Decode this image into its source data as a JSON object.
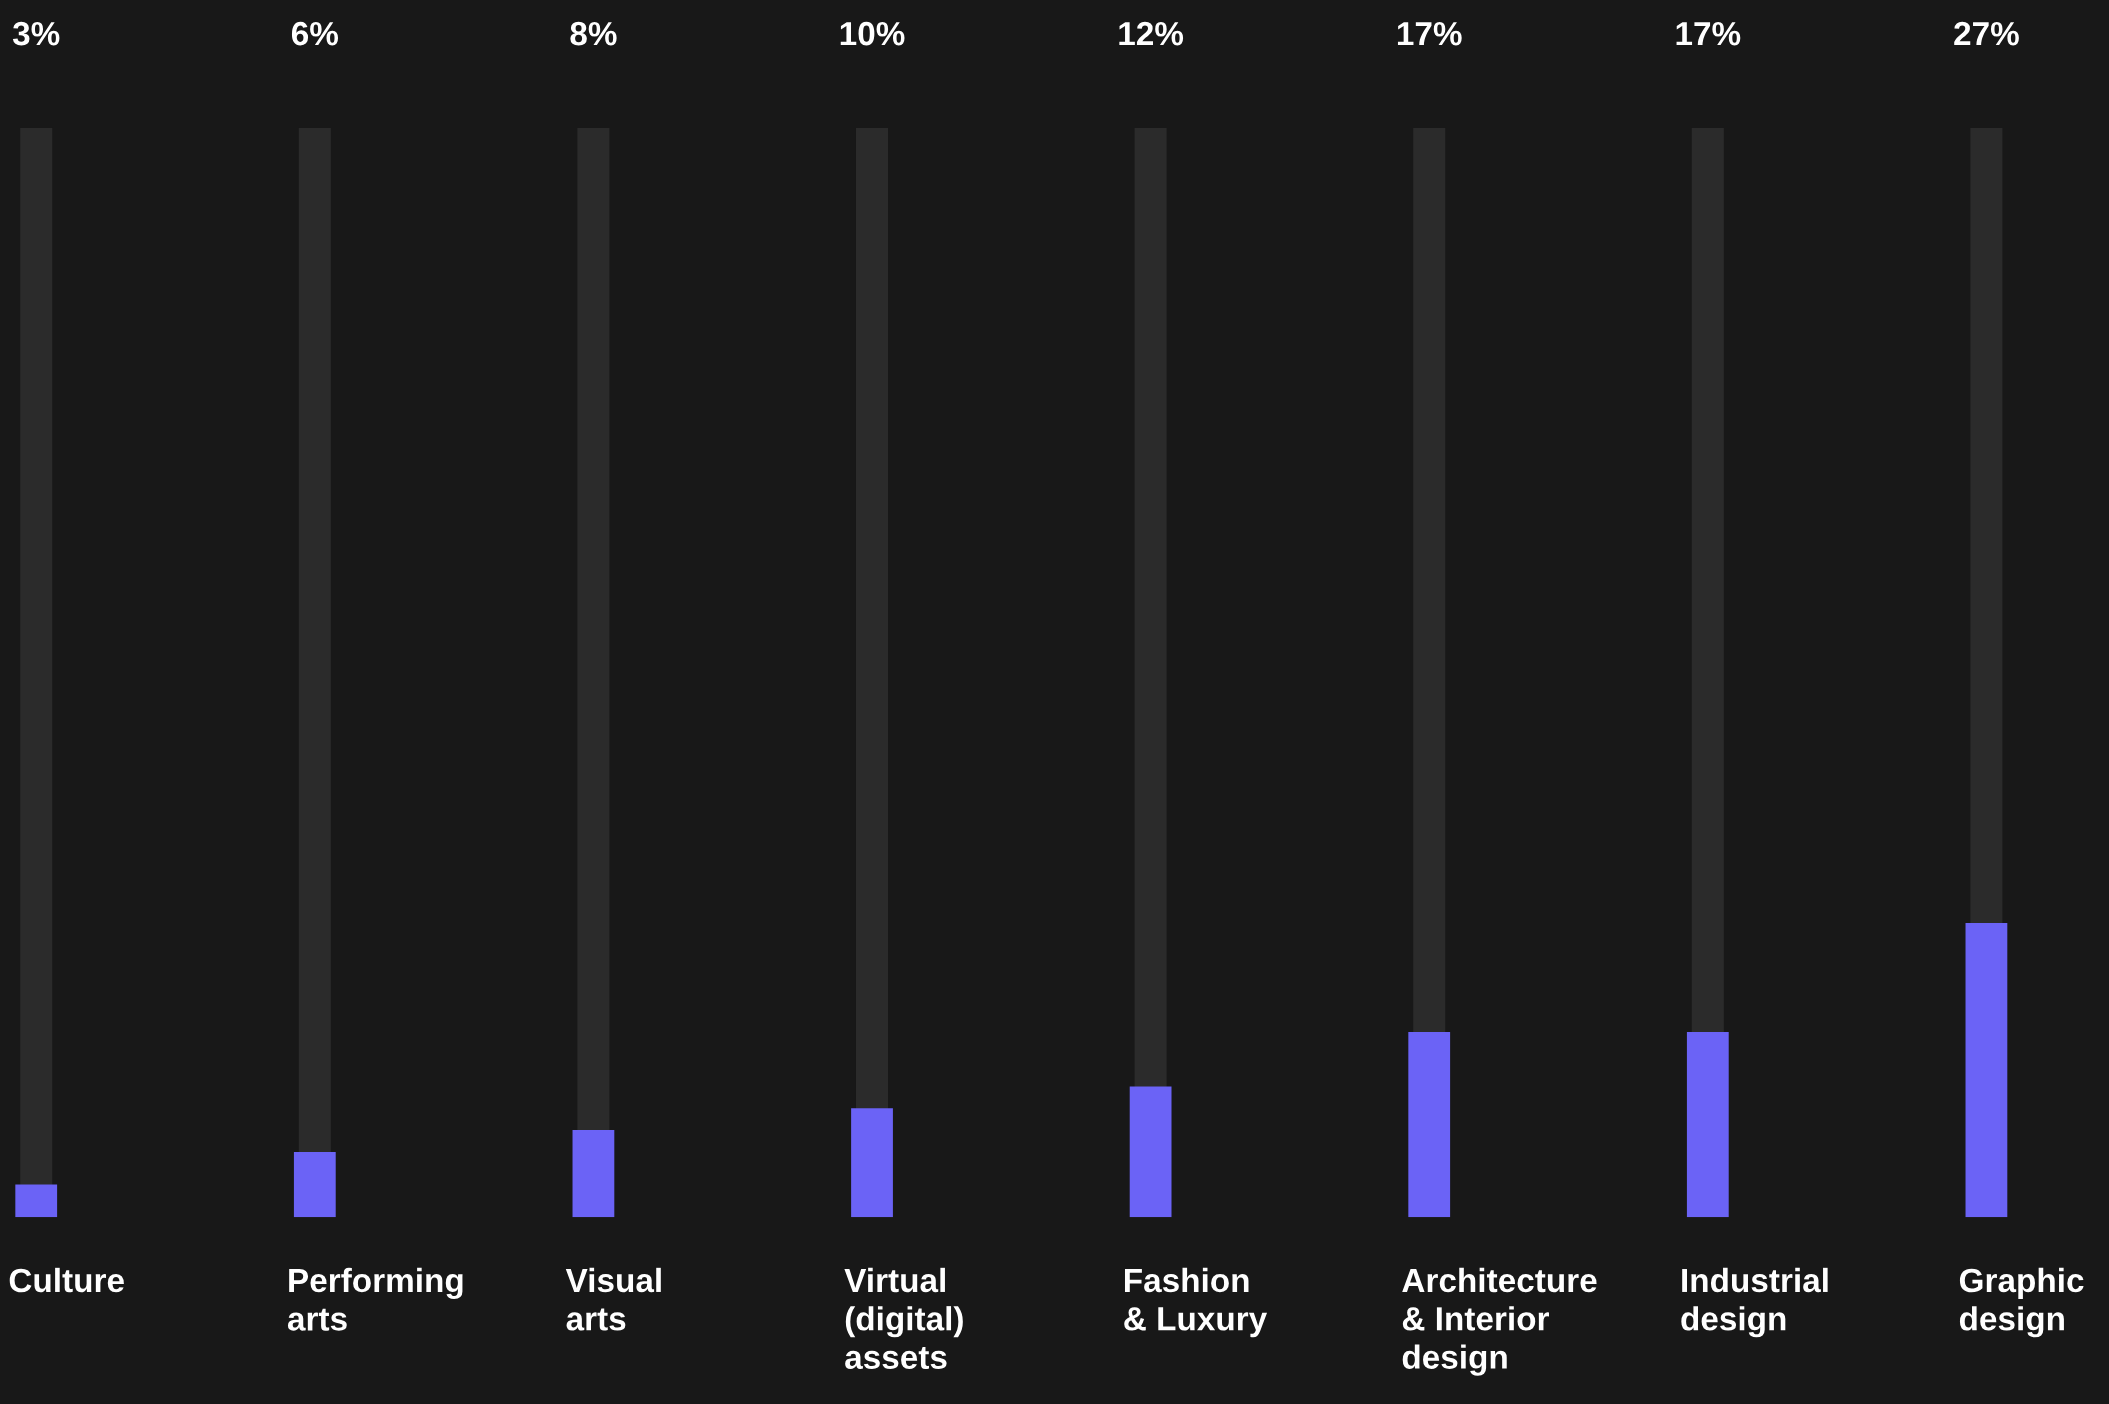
{
  "chart_data": {
    "type": "bar",
    "categories": [
      "Culture",
      "Performing\narts",
      "Visual\narts",
      "Virtual\n(digital)\nassets",
      "Fashion\n& Luxury",
      "Architecture\n& Interior\ndesign",
      "Industrial\ndesign",
      "Graphic\ndesign"
    ],
    "series": [
      {
        "color": "#2b2b2b",
        "values": [
          100,
          100,
          100,
          100,
          100,
          100,
          100,
          100
        ]
      },
      {
        "color": "#6b63f6",
        "values": [
          3,
          6,
          8,
          10,
          12,
          17,
          17,
          27
        ],
        "value_labels": [
          "3%",
          "6%",
          "8%",
          "10%",
          "12%",
          "17%",
          "17%",
          "27%"
        ]
      }
    ],
    "ylim": [
      0,
      100
    ],
    "tick_labels": false
  }
}
